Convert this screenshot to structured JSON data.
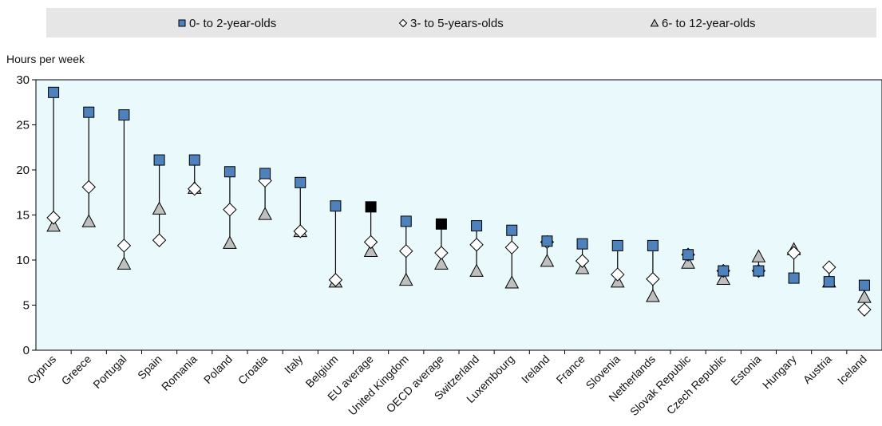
{
  "chart_data": {
    "type": "scatter",
    "ylabel": "Hours per week",
    "ylim": [
      0,
      30
    ],
    "yticks": [
      0,
      5,
      10,
      15,
      20,
      25,
      30
    ],
    "legend_position": "top",
    "categories": [
      "Cyprus",
      "Greece",
      "Portugal",
      "Spain",
      "Romania",
      "Poland",
      "Croatia",
      "Italy",
      "Belgium",
      "EU average",
      "United Kingdom",
      "OECD average",
      "Switzerland",
      "Luxembourg",
      "Ireland",
      "France",
      "Slovenia",
      "Netherlands",
      "Slovak Republic",
      "Czech Republic",
      "Estonia",
      "Hungary",
      "Austria",
      "Iceland"
    ],
    "highlighted_categories": [
      "EU average",
      "OECD average"
    ],
    "series": [
      {
        "name": "0- to 2-year-olds",
        "marker": "square",
        "color": "#4f81bd",
        "highlight_color": "#000000",
        "values": [
          28.6,
          26.4,
          26.1,
          21.1,
          21.1,
          19.8,
          19.6,
          18.6,
          16.0,
          15.9,
          14.3,
          14.0,
          13.8,
          13.3,
          12.1,
          11.8,
          11.6,
          11.6,
          10.6,
          8.8,
          8.8,
          8.0,
          7.6,
          7.2
        ]
      },
      {
        "name": "3- to 5-years-olds",
        "marker": "diamond",
        "color": "#ffffff",
        "values": [
          14.7,
          18.1,
          11.6,
          12.2,
          17.9,
          15.6,
          18.8,
          13.2,
          7.8,
          12.0,
          11.0,
          10.8,
          11.7,
          11.4,
          12.0,
          9.9,
          8.4,
          7.9,
          10.6,
          8.8,
          8.8,
          10.8,
          9.2,
          4.5
        ]
      },
      {
        "name": "6- to 12-year-olds",
        "marker": "triangle",
        "color": "#bfbfbf",
        "values": [
          13.8,
          14.3,
          9.6,
          15.7,
          18.0,
          11.9,
          15.1,
          13.2,
          7.6,
          11.0,
          7.8,
          9.6,
          8.8,
          7.5,
          9.9,
          9.1,
          7.6,
          6.0,
          9.7,
          7.9,
          10.4,
          11.2,
          7.6,
          5.9
        ]
      }
    ]
  }
}
